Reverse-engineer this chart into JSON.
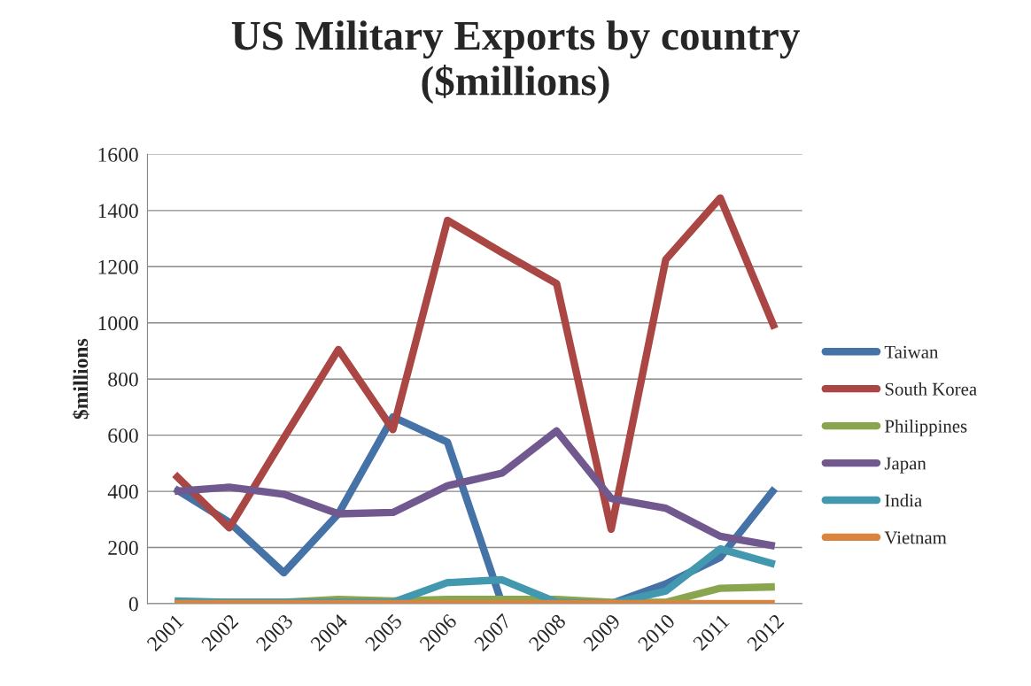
{
  "chart_data": {
    "type": "line",
    "title": "US Military Exports by country\n($millions)",
    "ylabel": "$millions",
    "categories": [
      "2001",
      "2002",
      "2003",
      "2004",
      "2005",
      "2006",
      "2007",
      "2008",
      "2009",
      "2010",
      "2011",
      "2012"
    ],
    "series": [
      {
        "name": "Taiwan",
        "color": "#4572a7",
        "values": [
          410,
          290,
          110,
          320,
          665,
          575,
          0,
          0,
          0,
          70,
          165,
          410
        ]
      },
      {
        "name": "South Korea",
        "color": "#aa4643",
        "values": [
          460,
          270,
          590,
          905,
          620,
          1365,
          1250,
          1140,
          265,
          1225,
          1445,
          980
        ]
      },
      {
        "name": "Philippines",
        "color": "#89a54e",
        "values": [
          5,
          5,
          5,
          15,
          10,
          15,
          15,
          15,
          5,
          5,
          55,
          60
        ]
      },
      {
        "name": "Japan",
        "color": "#71588f",
        "values": [
          400,
          415,
          390,
          320,
          325,
          420,
          465,
          615,
          375,
          340,
          240,
          205
        ]
      },
      {
        "name": "India",
        "color": "#4198af",
        "values": [
          10,
          5,
          5,
          5,
          5,
          75,
          85,
          5,
          0,
          45,
          195,
          140
        ]
      },
      {
        "name": "Vietnam",
        "color": "#db843d",
        "values": [
          0,
          0,
          0,
          0,
          0,
          0,
          0,
          0,
          0,
          0,
          0,
          0
        ]
      }
    ],
    "ylim": [
      0,
      1600
    ],
    "yticks": [
      0,
      200,
      400,
      600,
      800,
      1000,
      1200,
      1400,
      1600
    ],
    "grid": "y",
    "legend": "right",
    "marker": "none",
    "line_style": "solid"
  }
}
